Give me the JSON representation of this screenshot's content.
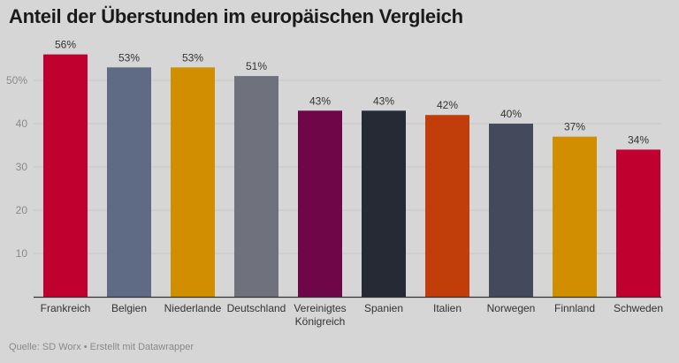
{
  "chart_data": {
    "type": "bar",
    "title": "Anteil der Überstunden im europäischen Vergleich",
    "categories": [
      "Frankreich",
      "Belgien",
      "Niederlande",
      "Deutschland",
      "Vereinigtes Königreich",
      "Spanien",
      "Italien",
      "Norwegen",
      "Finnland",
      "Schweden"
    ],
    "values": [
      56,
      53,
      53,
      51,
      43,
      43,
      42,
      40,
      37,
      34
    ],
    "value_labels": [
      "56%",
      "53%",
      "53%",
      "51%",
      "43%",
      "43%",
      "42%",
      "40%",
      "37%",
      "34%"
    ],
    "colors": [
      "#c0002f",
      "#5f6a85",
      "#d18f00",
      "#6f717c",
      "#6e0648",
      "#262a35",
      "#c13d0a",
      "#444a5c",
      "#d18f00",
      "#c0002f"
    ],
    "yticks": [
      10,
      20,
      30,
      40,
      50
    ],
    "ytick_labels": [
      "10",
      "20",
      "30",
      "40",
      "50%"
    ],
    "ylim": [
      0,
      60
    ],
    "grid": true,
    "xlabel": "",
    "ylabel": ""
  },
  "footer": {
    "source": "Quelle: SD Worx • Erstellt mit Datawrapper"
  }
}
